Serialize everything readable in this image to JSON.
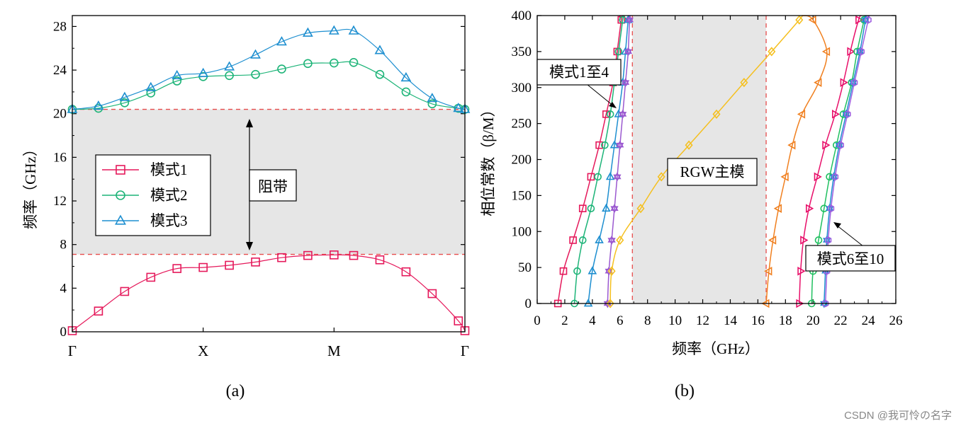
{
  "watermark": "CSDN @我可怜の名字",
  "chart_data": [
    {
      "type": "line",
      "panel_caption": "(a)",
      "title": "",
      "xlabel": "",
      "ylabel": "频率（GHz）",
      "x_ticks": [
        "Γ",
        "X",
        "M",
        "Γ"
      ],
      "x_tick_positions": [
        0,
        1,
        2,
        3
      ],
      "xlim": [
        0,
        3
      ],
      "ylim": [
        0,
        29
      ],
      "y_ticks": [
        0,
        4,
        8,
        12,
        16,
        20,
        24,
        28
      ],
      "legend": {
        "position": "center-left",
        "entries": [
          "模式1",
          "模式2",
          "模式3"
        ]
      },
      "band_gap": {
        "label": "阻带",
        "ymin": 7.1,
        "ymax": 20.4,
        "shaded": true
      },
      "series": [
        {
          "name": "模式1",
          "color": "#e5195b",
          "marker": "square",
          "x": [
            0,
            0.2,
            0.4,
            0.6,
            0.8,
            1.0,
            1.2,
            1.4,
            1.6,
            1.8,
            2.0,
            2.15,
            2.35,
            2.55,
            2.75,
            2.95,
            3.0
          ],
          "y": [
            0.1,
            1.9,
            3.7,
            5.0,
            5.8,
            5.9,
            6.1,
            6.4,
            6.8,
            7.0,
            7.05,
            7.0,
            6.6,
            5.5,
            3.5,
            1.0,
            0.1
          ]
        },
        {
          "name": "模式2",
          "color": "#1db478",
          "marker": "circle",
          "x": [
            0,
            0.2,
            0.4,
            0.6,
            0.8,
            1.0,
            1.2,
            1.4,
            1.6,
            1.8,
            2.0,
            2.15,
            2.35,
            2.55,
            2.75,
            2.95,
            3.0
          ],
          "y": [
            20.4,
            20.5,
            21.0,
            21.9,
            23.0,
            23.4,
            23.5,
            23.6,
            24.1,
            24.6,
            24.65,
            24.7,
            23.6,
            22.0,
            20.9,
            20.5,
            20.4
          ]
        },
        {
          "name": "模式3",
          "color": "#1e8fd0",
          "marker": "triangle",
          "x": [
            0,
            0.2,
            0.4,
            0.6,
            0.8,
            1.0,
            1.2,
            1.4,
            1.6,
            1.8,
            2.0,
            2.15,
            2.35,
            2.55,
            2.75,
            2.95,
            3.0
          ],
          "y": [
            20.4,
            20.7,
            21.5,
            22.4,
            23.5,
            23.7,
            24.3,
            25.4,
            26.6,
            27.4,
            27.6,
            27.6,
            25.8,
            23.3,
            21.4,
            20.5,
            20.4
          ]
        }
      ]
    },
    {
      "type": "line",
      "panel_caption": "(b)",
      "title": "",
      "xlabel": "频率（GHz）",
      "ylabel": "相位常数（β/M）",
      "xlim": [
        0,
        26
      ],
      "ylim": [
        0,
        400
      ],
      "x_ticks": [
        0,
        2,
        4,
        6,
        8,
        10,
        12,
        14,
        16,
        18,
        20,
        22,
        24,
        26
      ],
      "y_ticks": [
        0,
        50,
        100,
        150,
        200,
        250,
        300,
        350,
        400
      ],
      "band_gap": {
        "xmin": 6.9,
        "xmax": 16.6,
        "shaded": true
      },
      "annotations": [
        {
          "text": "模式1至4",
          "points_to": [
            5.9,
            300
          ]
        },
        {
          "text": "RGW主模",
          "points_to": [
            12.5,
            235
          ]
        },
        {
          "text": "模式6至10",
          "points_to": [
            21.0,
            115
          ]
        }
      ],
      "series": [
        {
          "name": "模式1",
          "color": "#e5195b",
          "marker": "square",
          "x": [
            1.5,
            1.9,
            2.6,
            3.3,
            3.9,
            4.5,
            5.0,
            5.5,
            5.8,
            6.1,
            6.2
          ],
          "y": [
            0,
            45,
            88,
            132,
            176,
            220,
            263,
            307,
            350,
            394,
            400
          ]
        },
        {
          "name": "模式2",
          "color": "#1db478",
          "marker": "circle",
          "x": [
            2.7,
            2.9,
            3.3,
            3.9,
            4.4,
            4.9,
            5.3,
            5.6,
            5.9,
            6.2,
            6.3
          ],
          "y": [
            0,
            45,
            88,
            132,
            176,
            220,
            263,
            307,
            350,
            394,
            400
          ]
        },
        {
          "name": "模式3",
          "color": "#1e8fd0",
          "marker": "triangle",
          "x": [
            3.7,
            4.0,
            4.5,
            5.0,
            5.3,
            5.6,
            5.9,
            6.2,
            6.4,
            6.6,
            6.7
          ],
          "y": [
            0,
            45,
            88,
            132,
            176,
            220,
            263,
            307,
            350,
            394,
            400
          ]
        },
        {
          "name": "模式4",
          "color": "#9b59d0",
          "marker": "star",
          "x": [
            5.1,
            5.2,
            5.4,
            5.6,
            5.8,
            6.0,
            6.2,
            6.4,
            6.6,
            6.7,
            6.8
          ],
          "y": [
            0,
            45,
            88,
            132,
            176,
            220,
            263,
            307,
            350,
            394,
            400
          ]
        },
        {
          "name": "RGW主模",
          "color": "#f5c020",
          "marker": "diamond",
          "x": [
            5.3,
            5.4,
            6.0,
            7.5,
            9.0,
            11.0,
            13.0,
            15.0,
            17.0,
            19.0,
            19.2
          ],
          "y": [
            0,
            45,
            88,
            132,
            176,
            220,
            263,
            307,
            350,
            394,
            400
          ]
        },
        {
          "name": "模式6",
          "color": "#f08020",
          "marker": "triangle-left",
          "x": [
            16.6,
            16.8,
            17.1,
            17.5,
            18.0,
            18.5,
            19.2,
            20.4,
            21.0,
            20.0,
            19.2
          ],
          "y": [
            0,
            45,
            88,
            132,
            176,
            220,
            263,
            307,
            350,
            394,
            400
          ]
        },
        {
          "name": "模式7",
          "color": "#e8106a",
          "marker": "triangle-right",
          "x": [
            19.0,
            19.1,
            19.3,
            19.7,
            20.3,
            20.9,
            21.6,
            22.2,
            22.7,
            23.3,
            23.5
          ],
          "y": [
            0,
            45,
            88,
            132,
            176,
            220,
            263,
            307,
            350,
            394,
            400
          ]
        },
        {
          "name": "模式8",
          "color": "#20c060",
          "marker": "circle",
          "x": [
            19.9,
            20.0,
            20.4,
            20.8,
            21.2,
            21.7,
            22.2,
            22.8,
            23.2,
            23.7,
            23.8
          ],
          "y": [
            0,
            45,
            88,
            132,
            176,
            220,
            263,
            307,
            350,
            394,
            400
          ]
        },
        {
          "name": "模式9",
          "color": "#1e8fd0",
          "marker": "star",
          "x": [
            20.8,
            20.9,
            21.0,
            21.2,
            21.5,
            21.9,
            22.4,
            22.9,
            23.4,
            23.8,
            23.9
          ],
          "y": [
            0,
            45,
            88,
            132,
            176,
            220,
            263,
            307,
            350,
            394,
            400
          ]
        },
        {
          "name": "模式10",
          "color": "#a060e0",
          "marker": "hexagon",
          "x": [
            20.9,
            21.0,
            21.1,
            21.3,
            21.6,
            22.0,
            22.5,
            23.0,
            23.5,
            24.0,
            24.1
          ],
          "y": [
            0,
            45,
            88,
            132,
            176,
            220,
            263,
            307,
            350,
            394,
            400
          ]
        }
      ]
    }
  ]
}
